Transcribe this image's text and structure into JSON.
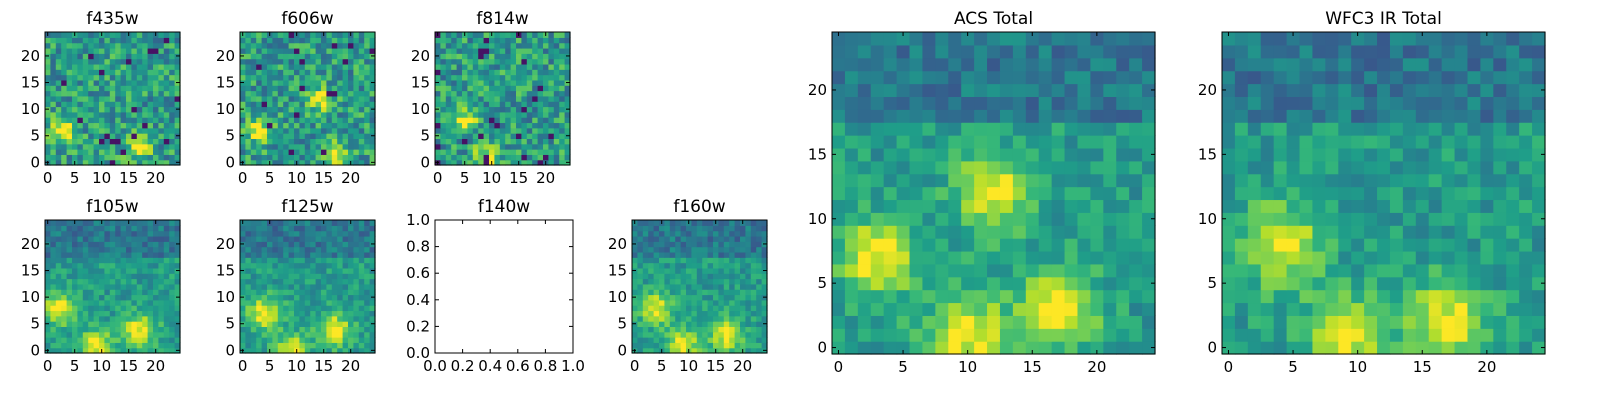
{
  "chart_data": [
    {
      "type": "heatmap",
      "title": "f435w",
      "colormap": "viridis",
      "xlim": [
        -0.5,
        24.5
      ],
      "ylim": [
        -0.5,
        24.5
      ],
      "xticks": [
        0,
        5,
        10,
        15,
        20
      ],
      "yticks": [
        0,
        5,
        10,
        15,
        20
      ],
      "blob_centers": [
        [
          17,
          3
        ],
        [
          3,
          6
        ]
      ]
    },
    {
      "type": "heatmap",
      "title": "f606w",
      "colormap": "viridis",
      "xlim": [
        -0.5,
        24.5
      ],
      "ylim": [
        -0.5,
        24.5
      ],
      "xticks": [
        0,
        5,
        10,
        15,
        20
      ],
      "yticks": [
        0,
        5,
        10,
        15,
        20
      ],
      "blob_centers": [
        [
          17,
          2
        ],
        [
          3,
          6
        ],
        [
          14,
          12
        ]
      ]
    },
    {
      "type": "heatmap",
      "title": "f814w",
      "colormap": "viridis",
      "xlim": [
        -0.5,
        24.5
      ],
      "ylim": [
        -0.5,
        24.5
      ],
      "xticks": [
        0,
        5,
        10,
        15,
        20
      ],
      "yticks": [
        0,
        5,
        10,
        15,
        20
      ],
      "blob_centers": [
        [
          9,
          1
        ],
        [
          5,
          8
        ]
      ]
    },
    {
      "type": "heatmap",
      "title": "f105w",
      "colormap": "viridis",
      "xlim": [
        -0.5,
        24.5
      ],
      "ylim": [
        -0.5,
        24.5
      ],
      "xticks": [
        0,
        5,
        10,
        15,
        20
      ],
      "yticks": [
        0,
        5,
        10,
        15,
        20
      ],
      "blob_centers": [
        [
          9,
          1
        ],
        [
          2,
          8
        ],
        [
          17,
          4
        ]
      ]
    },
    {
      "type": "heatmap",
      "title": "f125w",
      "colormap": "viridis",
      "xlim": [
        -0.5,
        24.5
      ],
      "ylim": [
        -0.5,
        24.5
      ],
      "xticks": [
        0,
        5,
        10,
        15,
        20
      ],
      "yticks": [
        0,
        5,
        10,
        15,
        20
      ],
      "blob_centers": [
        [
          4,
          7
        ],
        [
          9,
          0
        ],
        [
          17,
          4
        ]
      ]
    },
    {
      "type": "empty",
      "title": "f140w",
      "xlim": [
        0.0,
        1.0
      ],
      "ylim": [
        0.0,
        1.0
      ],
      "xticks": [
        "0.0",
        "0.2",
        "0.4",
        "0.6",
        "0.8",
        "1.0"
      ],
      "yticks": [
        "0.0",
        "0.2",
        "0.4",
        "0.6",
        "0.8",
        "1.0"
      ]
    },
    {
      "type": "heatmap",
      "title": "f160w",
      "colormap": "viridis",
      "xlim": [
        -0.5,
        24.5
      ],
      "ylim": [
        -0.5,
        24.5
      ],
      "xticks": [
        0,
        5,
        10,
        15,
        20
      ],
      "yticks": [
        0,
        5,
        10,
        15,
        20
      ],
      "blob_centers": [
        [
          4,
          8
        ],
        [
          9,
          1
        ],
        [
          17,
          3
        ]
      ]
    },
    {
      "type": "heatmap",
      "title": "ACS Total",
      "colormap": "viridis",
      "xlim": [
        -0.5,
        24.5
      ],
      "ylim": [
        -0.5,
        24.5
      ],
      "xticks": [
        0,
        5,
        10,
        15,
        20
      ],
      "yticks": [
        0,
        5,
        10,
        15,
        20
      ],
      "blob_centers": [
        [
          17,
          3
        ],
        [
          12,
          12
        ],
        [
          3,
          7
        ],
        [
          10,
          1
        ]
      ]
    },
    {
      "type": "heatmap",
      "title": "WFC3 IR Total",
      "colormap": "viridis",
      "xlim": [
        -0.5,
        24.5
      ],
      "ylim": [
        -0.5,
        24.5
      ],
      "xticks": [
        0,
        5,
        10,
        15,
        20
      ],
      "yticks": [
        0,
        5,
        10,
        15,
        20
      ],
      "blob_centers": [
        [
          4,
          8
        ],
        [
          9,
          1
        ],
        [
          17,
          2
        ]
      ]
    }
  ]
}
